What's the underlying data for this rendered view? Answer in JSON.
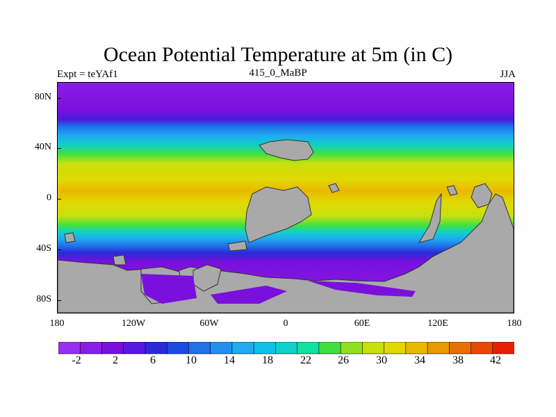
{
  "title": "Ocean Potential Temperature at 5m (in C)",
  "subtitle_left": "Expt = teYAf1",
  "subtitle_center": "415_0_MaBP",
  "subtitle_right": "JJA",
  "map": {
    "lat_ticks": [
      "80N",
      "40N",
      "0",
      "40S",
      "80S"
    ],
    "lon_ticks": [
      "180",
      "120W",
      "60W",
      "0",
      "60E",
      "120E",
      "180"
    ],
    "land_color": "#a9a9a9"
  },
  "colorbar": {
    "labels": [
      "-2",
      "2",
      "6",
      "10",
      "14",
      "18",
      "22",
      "26",
      "30",
      "34",
      "38",
      "42"
    ],
    "colors": [
      "#9b2ff0",
      "#8a1ee6",
      "#7a10dc",
      "#5a18e0",
      "#2a2ad8",
      "#1a4be0",
      "#2070e8",
      "#2090f0",
      "#20aaf0",
      "#10c0e8",
      "#10d0c8",
      "#10e0a0",
      "#40e040",
      "#90e020",
      "#c8e010",
      "#e0d800",
      "#e8b800",
      "#e89800",
      "#e87000",
      "#e84800",
      "#e82000"
    ]
  }
}
